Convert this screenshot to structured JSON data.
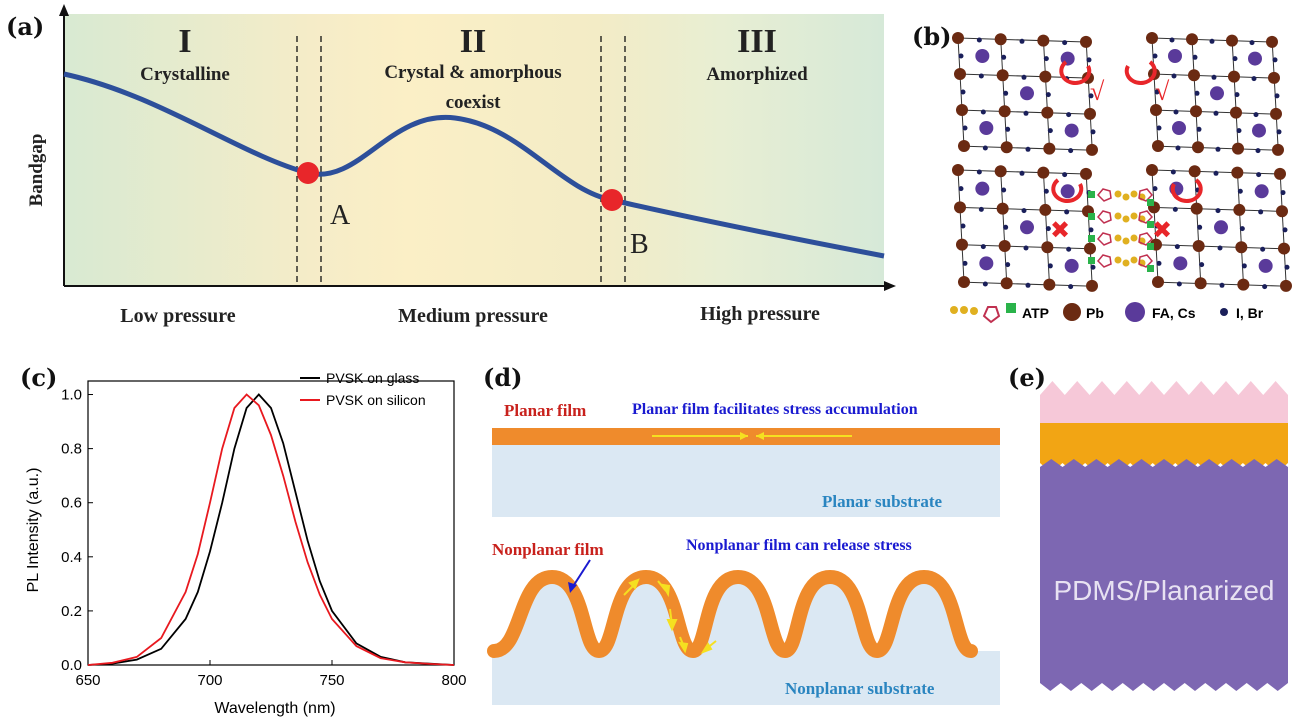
{
  "panel_labels": {
    "a": "(a)",
    "b": "(b)",
    "c": "(c)",
    "d": "(d)",
    "e": "(e)"
  },
  "panel_a": {
    "ylabel": "Bandgap",
    "regions": [
      {
        "numeral": "I",
        "name": "Crystalline"
      },
      {
        "numeral": "II",
        "name": "Crystal & amorphous",
        "name2": "coexist"
      },
      {
        "numeral": "III",
        "name": "Amorphized"
      }
    ],
    "points": [
      "A",
      "B"
    ],
    "pressure_labels": [
      "Low pressure",
      "Medium pressure",
      "High pressure"
    ],
    "colors": {
      "curve": "#2d4f9a",
      "point": "#e8262a"
    }
  },
  "panel_b": {
    "legend": {
      "atp": "ATP",
      "pb": "Pb",
      "fa": "FA, Cs",
      "ib": "I, Br"
    },
    "marks": {
      "check": "√",
      "cross": "✖"
    },
    "colors": {
      "pb": "#6b2a12",
      "fa": "#5a3a9a",
      "ib": "#1a1f5a",
      "atp": "#e0b020",
      "end": "#2ab34a",
      "ring": "#c03050"
    }
  },
  "chart_data": {
    "type": "line",
    "xlabel": "Wavelength (nm)",
    "ylabel": "PL Intensity (a.u.)",
    "xlim": [
      650,
      800
    ],
    "ylim": [
      0.0,
      1.05
    ],
    "xticks": [
      650,
      700,
      750,
      800
    ],
    "yticks": [
      0.0,
      0.2,
      0.4,
      0.6,
      0.8,
      1.0
    ],
    "legend_position": "top-right",
    "series": [
      {
        "name": "PVSK on glass",
        "color": "#000000",
        "x": [
          650,
          660,
          670,
          680,
          690,
          695,
          700,
          705,
          710,
          715,
          720,
          725,
          730,
          735,
          740,
          745,
          750,
          760,
          770,
          780,
          790,
          800
        ],
        "y": [
          0.0,
          0.005,
          0.02,
          0.06,
          0.17,
          0.27,
          0.42,
          0.6,
          0.8,
          0.95,
          1.0,
          0.95,
          0.82,
          0.64,
          0.46,
          0.31,
          0.2,
          0.08,
          0.03,
          0.01,
          0.005,
          0.0
        ]
      },
      {
        "name": "PVSK on silicon",
        "color": "#e8191f",
        "x": [
          650,
          660,
          670,
          680,
          690,
          695,
          700,
          705,
          710,
          715,
          720,
          725,
          730,
          735,
          740,
          745,
          750,
          760,
          770,
          780,
          790,
          800
        ],
        "y": [
          0.0,
          0.008,
          0.03,
          0.1,
          0.27,
          0.41,
          0.6,
          0.8,
          0.95,
          1.0,
          0.96,
          0.85,
          0.7,
          0.53,
          0.38,
          0.26,
          0.17,
          0.07,
          0.025,
          0.01,
          0.004,
          0.0
        ]
      }
    ]
  },
  "panel_d": {
    "planar_film": "Planar film",
    "planar_note": "Planar film facilitates stress accumulation",
    "planar_substrate": "Planar substrate",
    "nonplanar_film": "Nonplanar film",
    "nonplanar_note": "Nonplanar film can release stress",
    "nonplanar_substrate": "Nonplanar substrate",
    "colors": {
      "film": "#ef8b2c",
      "substrate": "#dbe8f3",
      "arrow": "#f5e020"
    }
  },
  "panel_e": {
    "label": "PDMS/Planarized",
    "colors": {
      "top": "#f6c8d8",
      "middle": "#f2a514",
      "bottom": "#7d67b2"
    }
  }
}
